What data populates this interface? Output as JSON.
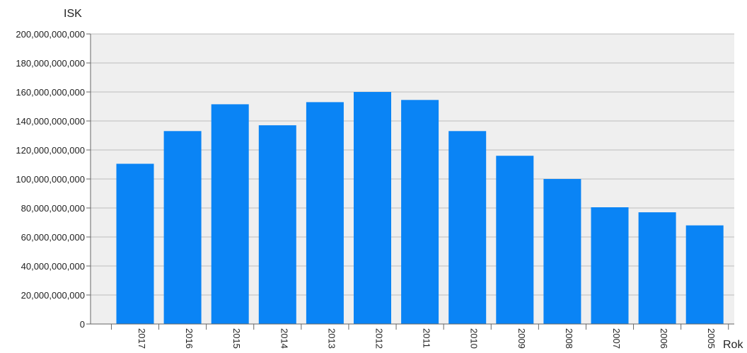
{
  "chart_data": {
    "type": "bar",
    "title": "",
    "ylabel": "ISK",
    "xlabel": "Rok",
    "ylim": [
      0,
      200000000000
    ],
    "yticks": [
      0,
      20000000000,
      40000000000,
      60000000000,
      80000000000,
      100000000000,
      120000000000,
      140000000000,
      160000000000,
      180000000000,
      200000000000
    ],
    "ytick_labels": [
      "0",
      "20,000,000,000",
      "40,000,000,000",
      "60,000,000,000",
      "80,000,000,000",
      "100,000,000,000",
      "120,000,000,000",
      "140,000,000,000",
      "160,000,000,000",
      "180,000,000,000",
      "200,000,000,000"
    ],
    "categories": [
      "2017",
      "2016",
      "2015",
      "2014",
      "2013",
      "2012",
      "2011",
      "2010",
      "2009",
      "2008",
      "2007",
      "2006",
      "2005"
    ],
    "values": [
      110500000000,
      133000000000,
      151500000000,
      137000000000,
      153000000000,
      160000000000,
      154500000000,
      133000000000,
      116000000000,
      100000000000,
      80500000000,
      77000000000,
      68000000000
    ],
    "grid": true,
    "legend": "none",
    "colors": {
      "bar": "#0a84f5",
      "plot_bg": "#efefef",
      "grid": "#bdbdbd",
      "axis": "#666666"
    }
  }
}
